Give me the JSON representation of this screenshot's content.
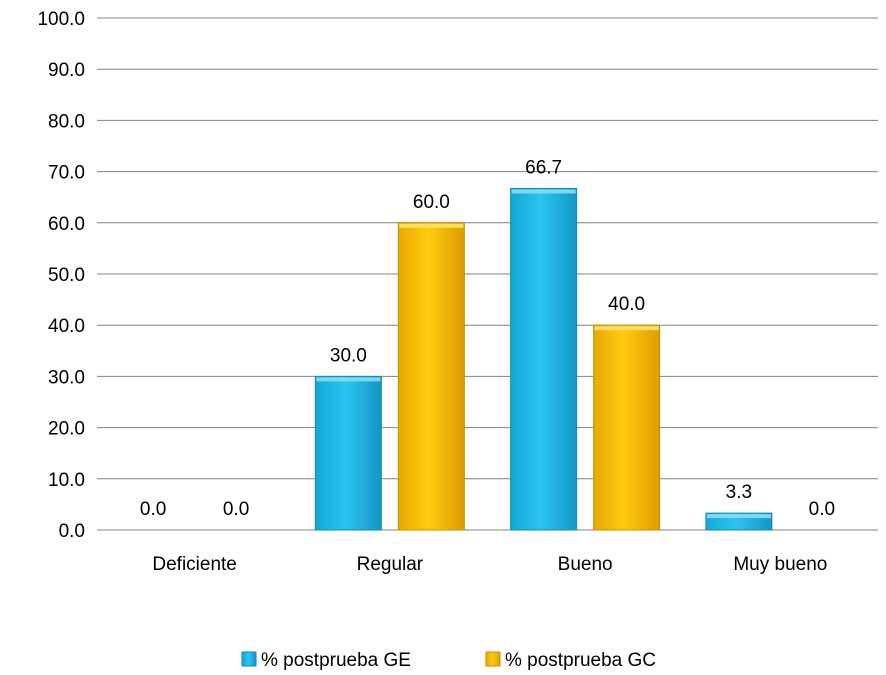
{
  "chart_data": {
    "type": "bar",
    "categories": [
      "Deficiente",
      "Regular",
      "Bueno",
      "Muy bueno"
    ],
    "series": [
      {
        "name": "% postprueba GE",
        "values": [
          0.0,
          30.0,
          66.7,
          3.3
        ],
        "color": "#1FB8EA",
        "label_texts": [
          "0.0",
          "30.0",
          "66.7",
          "3.3"
        ]
      },
      {
        "name": "% postprueba GC",
        "values": [
          0.0,
          60.0,
          40.0,
          0.0
        ],
        "color": "#FFC000",
        "label_texts": [
          "0.0",
          "60.0",
          "40.0",
          "0.0"
        ]
      }
    ],
    "ylim": [
      0,
      100
    ],
    "yticks": [
      "0.0",
      "10.0",
      "20.0",
      "30.0",
      "40.0",
      "50.0",
      "60.0",
      "70.0",
      "80.0",
      "90.0",
      "100.0"
    ],
    "grid": true,
    "legend_position": "bottom",
    "title": "",
    "xlabel": "",
    "ylabel": ""
  }
}
